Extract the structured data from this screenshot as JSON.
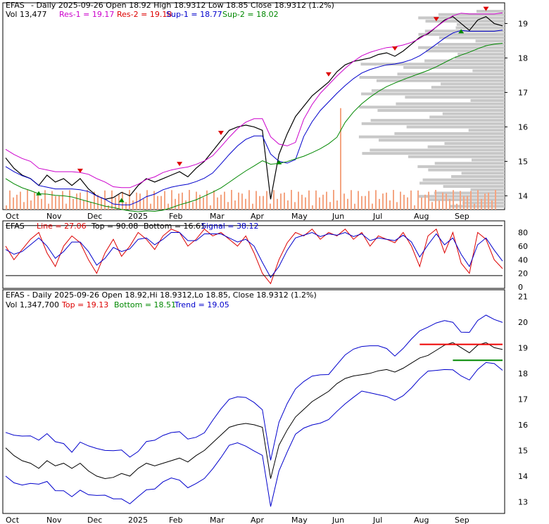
{
  "chart_data": [
    {
      "type": "line",
      "panel": "price",
      "header": {
        "symbol": "EFAS",
        "info": "- Daily 2025-09-26 Open 18.92  High 18.9312  Low 18.85  Close 18.9312 (1.2%)",
        "vol_text": "Vol 13,477",
        "res1_text": "Res-1 = 19.17",
        "res2_text": "Res-2 = 19.18",
        "sup1_text": "Sup-1 = 18.77",
        "sup2_text": "Sup-2 = 18.02"
      },
      "x_labels": [
        "Oct",
        "Nov",
        "Dec",
        "2025",
        "Feb",
        "Mar",
        "Apr",
        "May",
        "Jun",
        "Jul",
        "Aug",
        "Sep"
      ],
      "y_ticks": [
        "14",
        "15",
        "16",
        "17",
        "18",
        "19"
      ],
      "ylim": [
        13.6,
        19.6
      ],
      "close": [
        15.1,
        14.8,
        14.6,
        14.5,
        14.3,
        14.6,
        14.4,
        14.5,
        14.3,
        14.5,
        14.2,
        14.0,
        13.9,
        13.95,
        14.1,
        14.0,
        14.3,
        14.5,
        14.4,
        14.5,
        14.6,
        14.7,
        14.55,
        14.8,
        15.0,
        15.3,
        15.6,
        15.9,
        16.0,
        16.05,
        16.0,
        15.9,
        13.9,
        15.2,
        15.8,
        16.3,
        16.6,
        16.9,
        17.1,
        17.3,
        17.6,
        17.8,
        17.9,
        17.95,
        18.0,
        18.1,
        18.15,
        18.05,
        18.2,
        18.4,
        18.6,
        18.7,
        18.9,
        19.1,
        19.2,
        19.0,
        18.8,
        19.1,
        19.2,
        19.0,
        18.93
      ],
      "res1": 19.17,
      "res2": 19.18,
      "sup1": 18.77,
      "sup2": 18.02,
      "colors": {
        "res1": "#cc00cc",
        "res2": "#dd0000",
        "sup1": "#0000cc",
        "sup2": "#008800",
        "price": "#000000",
        "volume": "#f4a582"
      }
    },
    {
      "type": "line",
      "panel": "stochastic",
      "header": {
        "symbol": "EFAS",
        "line_text": "Line = 27.06",
        "top_text": "Top = 90.08",
        "bottom_text": "Bottom = 16.61",
        "signal_text": "Signal = 38.12"
      },
      "y_ticks": [
        "0",
        "20",
        "40",
        "60",
        "80"
      ],
      "ylim": [
        0,
        95
      ],
      "line": [
        60,
        40,
        55,
        70,
        80,
        50,
        30,
        60,
        75,
        65,
        40,
        20,
        50,
        70,
        45,
        60,
        80,
        70,
        55,
        75,
        85,
        80,
        60,
        70,
        85,
        75,
        80,
        70,
        60,
        75,
        50,
        20,
        5,
        40,
        65,
        80,
        75,
        85,
        70,
        80,
        75,
        85,
        70,
        80,
        60,
        75,
        70,
        65,
        80,
        60,
        30,
        75,
        85,
        50,
        80,
        35,
        20,
        80,
        70,
        40,
        27
      ],
      "signal": [
        55,
        48,
        52,
        62,
        72,
        60,
        42,
        52,
        66,
        66,
        52,
        32,
        42,
        58,
        52,
        56,
        70,
        72,
        62,
        70,
        80,
        80,
        68,
        68,
        78,
        78,
        78,
        72,
        66,
        70,
        60,
        36,
        14,
        30,
        54,
        72,
        76,
        80,
        74,
        78,
        76,
        80,
        74,
        78,
        68,
        72,
        70,
        68,
        76,
        66,
        44,
        62,
        78,
        62,
        72,
        48,
        30,
        62,
        72,
        54,
        38
      ],
      "top": 90.08,
      "bottom": 16.61,
      "colors": {
        "line": "#dd0000",
        "signal": "#0000cc",
        "bands": "#000000"
      }
    },
    {
      "type": "line",
      "panel": "trend",
      "header": {
        "info": "EFAS - Daily 2025-09-26 Open 18.92,Hi 18.9312,Lo 18.85, Close 18.9312 (1.2%)",
        "vol_text": "Vol 1,347,700",
        "top_text": "Top = 19.13",
        "bottom_text": "Bottom = 18.51",
        "trend_text": "Trend = 19.05"
      },
      "x_labels": [
        "Oct",
        "Nov",
        "Dec",
        "2025",
        "Feb",
        "Mar",
        "Apr",
        "May",
        "Jun",
        "Jul",
        "Aug",
        "Sep"
      ],
      "y_ticks": [
        "13",
        "14",
        "15",
        "16",
        "17",
        "18",
        "19",
        "20",
        "21"
      ],
      "ylim": [
        12.6,
        21.2
      ],
      "top": 19.13,
      "bottom": 18.51,
      "trend": 19.05,
      "colors": {
        "band": "#0000cc",
        "resist": "#ee0000",
        "support": "#008800"
      }
    }
  ]
}
